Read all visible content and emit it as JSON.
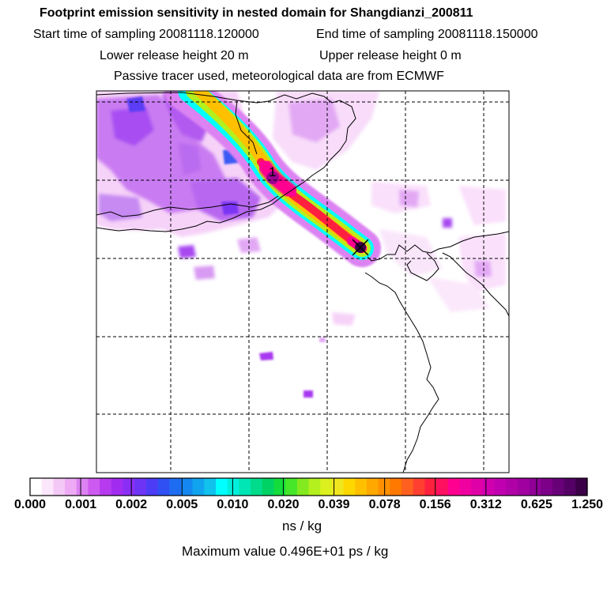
{
  "header": {
    "title": "Footprint emission sensitivity in nested domain for Shangdianzi_200811",
    "start_time": "Start time of sampling 20081118.120000",
    "end_time": "End time of sampling 20081118.150000",
    "lower_release": "Lower release height   20 m",
    "upper_release": "Upper release height    0 m",
    "tracer_info": "Passive tracer used, meteorological data are from ECMWF"
  },
  "map": {
    "release_label": "1"
  },
  "colorbar": {
    "labels": [
      "0.000",
      "0.001",
      "0.002",
      "0.005",
      "0.010",
      "0.020",
      "0.039",
      "0.078",
      "0.156",
      "0.312",
      "0.625",
      "1.250"
    ],
    "colors": [
      "#ffffff",
      "#fbe6fb",
      "#f4c8f6",
      "#eeaaf4",
      "#dc82f2",
      "#cd5af0",
      "#b83aee",
      "#a12cf0",
      "#8a2ef5",
      "#6d34f6",
      "#4c3cf6",
      "#3050f4",
      "#1e6cf2",
      "#1488f0",
      "#10a4ee",
      "#10c2ec",
      "#00ffff",
      "#00f0dc",
      "#00e6b4",
      "#00dc8c",
      "#00d264",
      "#14dc3c",
      "#46e628",
      "#82ea1e",
      "#b4f01e",
      "#dcf01e",
      "#f0e61e",
      "#ffd700",
      "#ffc000",
      "#ffa800",
      "#ff9000",
      "#ff7800",
      "#ff6020",
      "#ff4030",
      "#ff2040",
      "#ff1060",
      "#ff0090",
      "#f000a0",
      "#e000a8",
      "#d000b0",
      "#c000b0",
      "#b000a8",
      "#a000a0",
      "#900098",
      "#7c0088",
      "#680078",
      "#540064",
      "#3c0048"
    ],
    "units": "ns / kg"
  },
  "footer": {
    "max_value": "Maximum value  0.496E+01 ps / kg"
  }
}
